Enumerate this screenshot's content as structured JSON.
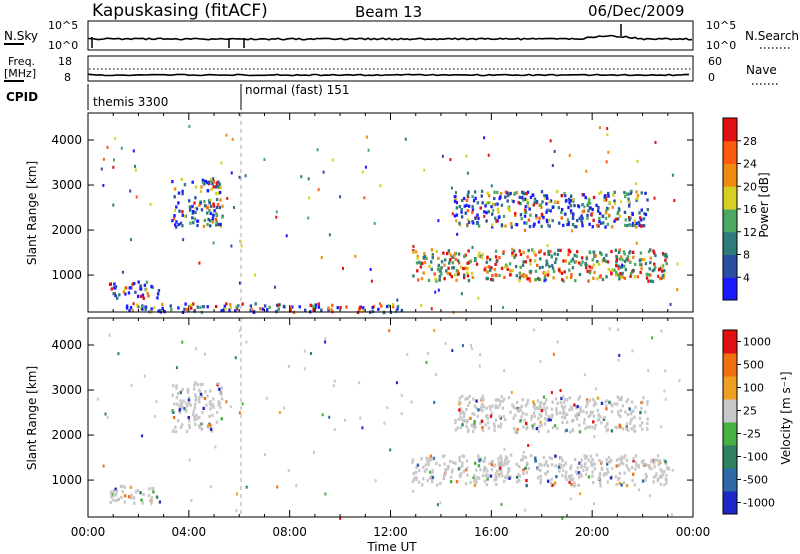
{
  "header": {
    "station": "Kapuskasing (fitACF)",
    "beam": "Beam 13",
    "date": "06/Dec/2009"
  },
  "status_panels": {
    "nsky_label": "N.Sky",
    "nsearch_label": "N.Search",
    "nsky_ticks": [
      "10^5",
      "10^0"
    ],
    "nsearch_ticks": [
      "10^5",
      "10^0"
    ],
    "freq_label": "Freq.",
    "freq_unit": "[MHz]",
    "freq_ticks": [
      "18",
      "8"
    ],
    "nave_label": "Nave",
    "nave_ticks": [
      "60",
      "0"
    ],
    "cpid_label": "CPID",
    "cpid_segments": [
      {
        "name": "themis 3300",
        "start_hour": 0
      },
      {
        "name": "normal (fast) 151",
        "start_hour": 6.0
      }
    ]
  },
  "chart_data": [
    {
      "type": "heatmap",
      "panel": "power",
      "ylabel": "Slant Range [km]",
      "xlabel": "Time UT",
      "x_ticks": [
        "00:00",
        "04:00",
        "08:00",
        "12:00",
        "16:00",
        "20:00",
        "00:00"
      ],
      "xlim_hours": [
        0,
        24
      ],
      "ylim": [
        180,
        4600
      ],
      "y_ticks": [
        1000,
        2000,
        3000,
        4000
      ],
      "colorbar": {
        "label": "Power [dB]",
        "ticks": [
          4,
          8,
          12,
          16,
          20,
          24,
          28
        ],
        "colors": [
          "#1a1aff",
          "#2a4fa0",
          "#2f7a7a",
          "#4aa860",
          "#d8d020",
          "#f08a10",
          "#ff5a10",
          "#e01010"
        ]
      },
      "echo_regions": [
        {
          "name": "evening-patch",
          "x": [
            3.3,
            5.3
          ],
          "y": [
            2100,
            3200
          ]
        },
        {
          "name": "early-low-range",
          "x": [
            0.8,
            2.8
          ],
          "y": [
            500,
            900
          ]
        },
        {
          "name": "ground-scatter-band",
          "x": [
            1.5,
            12.5
          ],
          "y": [
            200,
            400
          ]
        },
        {
          "name": "main-band",
          "x": [
            12.8,
            23.0
          ],
          "y": [
            900,
            1600
          ]
        },
        {
          "name": "upper-band",
          "x": [
            14.5,
            22.2
          ],
          "y": [
            2100,
            2900
          ]
        }
      ]
    },
    {
      "type": "heatmap",
      "panel": "velocity",
      "ylabel": "Slant Range [km]",
      "xlabel": "Time UT",
      "x_ticks": [
        "00:00",
        "04:00",
        "08:00",
        "12:00",
        "16:00",
        "20:00",
        "00:00"
      ],
      "xlim_hours": [
        0,
        24
      ],
      "ylim": [
        180,
        4600
      ],
      "y_ticks": [
        1000,
        2000,
        3000,
        4000
      ],
      "colorbar": {
        "label": "Velocity [m s⁻¹]",
        "ticks": [
          "1000",
          "500",
          "100",
          "25",
          "-25",
          "-100",
          "-500",
          "-1000"
        ],
        "colors": [
          "#1c28c8",
          "#2f6aa8",
          "#2e8060",
          "#48b040",
          "#c8c8c8",
          "#f0a020",
          "#f07010",
          "#e01010"
        ]
      },
      "echo_regions": [
        {
          "name": "evening-patch",
          "x": [
            3.3,
            5.3
          ],
          "y": [
            2100,
            3200
          ]
        },
        {
          "name": "early-low-range",
          "x": [
            0.8,
            2.8
          ],
          "y": [
            500,
            900
          ]
        },
        {
          "name": "main-band",
          "x": [
            12.8,
            23.0
          ],
          "y": [
            900,
            1600
          ]
        },
        {
          "name": "upper-band",
          "x": [
            14.5,
            22.2
          ],
          "y": [
            2100,
            2900
          ]
        }
      ]
    }
  ]
}
